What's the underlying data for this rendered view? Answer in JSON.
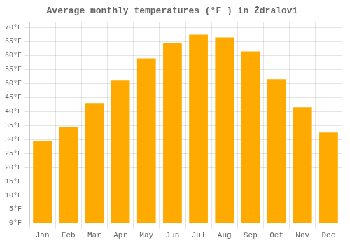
{
  "chart_data": {
    "type": "bar",
    "title": "Average monthly temperatures (°F ) in Ždralovi",
    "categories": [
      "Jan",
      "Feb",
      "Mar",
      "Apr",
      "May",
      "Jun",
      "Jul",
      "Aug",
      "Sep",
      "Oct",
      "Nov",
      "Dec"
    ],
    "values": [
      29.5,
      34.5,
      43.0,
      51.0,
      59.0,
      64.5,
      67.5,
      66.5,
      61.5,
      51.5,
      41.5,
      32.5
    ],
    "color": "#FFAA00",
    "ylim": [
      0,
      72
    ],
    "yticks": [
      {
        "value": 0,
        "label": "0°F"
      },
      {
        "value": 5,
        "label": "5°F"
      },
      {
        "value": 10,
        "label": "10°F"
      },
      {
        "value": 15,
        "label": "15°F"
      },
      {
        "value": 20,
        "label": "20°F"
      },
      {
        "value": 25,
        "label": "25°F"
      },
      {
        "value": 30,
        "label": "30°F"
      },
      {
        "value": 35,
        "label": "35°F"
      },
      {
        "value": 40,
        "label": "40°F"
      },
      {
        "value": 45,
        "label": "45°F"
      },
      {
        "value": 50,
        "label": "50°F"
      },
      {
        "value": 55,
        "label": "55°F"
      },
      {
        "value": 60,
        "label": "60°F"
      },
      {
        "value": 65,
        "label": "65°F"
      },
      {
        "value": 70,
        "label": "70°F"
      }
    ],
    "grid": true
  }
}
